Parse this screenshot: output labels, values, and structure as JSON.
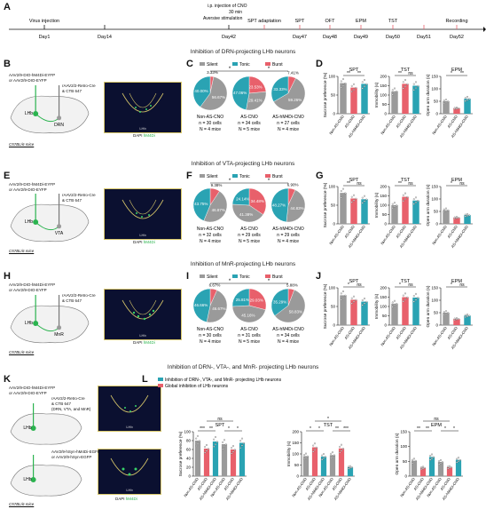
{
  "timeline": {
    "annotation_lines": [
      "i.p. injection of CNO",
      "30 min",
      "Aversive stimulation"
    ],
    "events": [
      {
        "label_top": "Virus injection",
        "day": "Day1"
      },
      {
        "label_top": "",
        "day": "Day14"
      },
      {
        "label_top": "",
        "day": "Day42"
      },
      {
        "label_top": "SPT adaptation",
        "day": ""
      },
      {
        "label_top": "SPT",
        "day": "Day47"
      },
      {
        "label_top": "OFT",
        "day": "Day48"
      },
      {
        "label_top": "EPM",
        "day": "Day49"
      },
      {
        "label_top": "TST",
        "day": "Day50"
      },
      {
        "label_top": "",
        "day": "Day51"
      },
      {
        "label_top": "Recording",
        "day": "Day52"
      }
    ]
  },
  "sections": [
    "Inhibition of DRN-projecting LHb neurons",
    "Inhibition of VTA-projecting LHb neurons",
    "Inhibition of MnR-projecting LHb neurons",
    "Inhibition of DRN-, VTA-, and MnR- projecting LHb neurons"
  ],
  "panel_letters": [
    "A",
    "B",
    "C",
    "D",
    "E",
    "F",
    "G",
    "H",
    "I",
    "J",
    "K",
    "L"
  ],
  "virus": {
    "b": {
      "line1": "AAV2/9-DIO-hM4Di-EYFP",
      "line2": "or AAV2/9-DIO-EYFP",
      "retro1": "rAAV2/2-Retro-Cre",
      "retro2": "& CTB 647",
      "target": "DRN",
      "mice": "C57BL/6 mice"
    },
    "e": {
      "line1": "AAV2/9-DIO-hM4Di-EYFP",
      "line2": "or AAV2/9-DIO-EYFP",
      "retro1": "rAAV2/2-Retro-Cre",
      "retro2": "& CTB 647",
      "target": "VTA",
      "mice": "C57BL/6 mice"
    },
    "h": {
      "line1": "AAV2/9-DIO-hM4Di-EYFP",
      "line2": "or AAV2/9-DIO-EYFP",
      "retro1": "rAAV2/2-Retro-Cre",
      "retro2": "& CTB 647",
      "target": "MnR",
      "mice": "C57BL/6 mice"
    },
    "k": {
      "line1": "AAV2/9-DIO-hM4Di-EYFP",
      "line2": "or AAV2/9-DIO-EYFP",
      "retro1": "rAAV2/2-Retro-Cre",
      "retro2": "& CTB 647",
      "retro3": "(DRN, VTA, and MnR)",
      "line3": "AAV2/9-hSyn-hM4Di-EGFP",
      "line4": "or AAV2/9-hSyn-EGFP",
      "mice": "C57BL/6 mice"
    },
    "lhb": "LHb",
    "dapi": "DAPI",
    "hm4di": "hM4Di"
  },
  "pie_legend": [
    "Silent",
    "Tonic",
    "Burst"
  ],
  "pie_colors": {
    "Silent": "#9a9a9a",
    "Tonic": "#2aa3b3",
    "Burst": "#e8606b"
  },
  "pies": {
    "c": [
      {
        "name": "Non-AS-CNO",
        "silent": 56.67,
        "tonic": 40.0,
        "burst": 3.33,
        "labels": [
          "56.67%",
          "40.00%",
          "3.33%"
        ],
        "n_cells": "n = 30 cells",
        "n_mice": "N = 4 mice"
      },
      {
        "name": "AS-CNO",
        "silent": 29.41,
        "tonic": 47.06,
        "burst": 23.53,
        "labels": [
          "29.41%",
          "47.06%",
          "23.53%"
        ],
        "n_cells": "n = 34 cells",
        "n_mice": "N = 5 mice"
      },
      {
        "name": "AS-hM4Di-CNO",
        "silent": 59.26,
        "tonic": 33.33,
        "burst": 7.41,
        "labels": [
          "59.26%",
          "33.33%",
          "7.41%"
        ],
        "n_cells": "n = 27 cells",
        "n_mice": "N = 4 mice"
      }
    ],
    "f": [
      {
        "name": "Non-AS-CNO",
        "silent": 46.87,
        "tonic": 43.75,
        "burst": 9.38,
        "labels": [
          "46.87%",
          "43.75%",
          "9.38%"
        ],
        "n_cells": "n = 32 cells",
        "n_mice": "N = 4 mice"
      },
      {
        "name": "AS-CNO",
        "silent": 41.38,
        "tonic": 24.14,
        "burst": 34.48,
        "labels": [
          "41.38%",
          "24.14%",
          "34.48%"
        ],
        "n_cells": "n = 29 cells",
        "n_mice": "N = 5 mice"
      },
      {
        "name": "AS-hM4Di-CNO",
        "silent": 44.83,
        "tonic": 48.27,
        "burst": 6.9,
        "labels": [
          "44.83%",
          "48.27%",
          "6.90%"
        ],
        "n_cells": "n = 29 cells",
        "n_mice": "N = 4 mice"
      }
    ],
    "i": [
      {
        "name": "Non-AS-CNO",
        "silent": 46.67,
        "tonic": 46.66,
        "burst": 6.67,
        "labels": [
          "46.67%",
          "46.66%",
          "6.67%"
        ],
        "n_cells": "n = 30 cells",
        "n_mice": "N = 4 mice"
      },
      {
        "name": "AS-CNO",
        "silent": 45.16,
        "tonic": 25.81,
        "burst": 29.03,
        "labels": [
          "45.16%",
          "25.81%",
          "29.03%"
        ],
        "n_cells": "n = 31 cells",
        "n_mice": "N = 5 mice"
      },
      {
        "name": "AS-hM4Di-CNO",
        "silent": 58.83,
        "tonic": 35.29,
        "burst": 5.88,
        "labels": [
          "58.83%",
          "35.29%",
          "5.88%"
        ],
        "n_cells": "n = 34 cells",
        "n_mice": "N = 4 mice"
      }
    ]
  },
  "groups3": [
    "Non-AS-CNO",
    "AS-CNO",
    "AS-hM4Di-CNO"
  ],
  "bar_colors": [
    "#9a9a9a",
    "#e8606b",
    "#2aa3b3"
  ],
  "chart_data": [
    {
      "type": "bar",
      "panel": "D",
      "title": "SPT",
      "ylabel": "Sucrose preference (%)",
      "ylim": [
        0,
        100
      ],
      "yticks": [
        0,
        50,
        100
      ],
      "categories": [
        "Non-AS-CNO",
        "AS-CNO",
        "AS-hM4Di-CNO"
      ],
      "values": [
        82,
        70,
        80
      ],
      "sig": [
        "**",
        "**"
      ]
    },
    {
      "type": "bar",
      "panel": "D",
      "title": "TST",
      "ylabel": "Immobility (s)",
      "ylim": [
        0,
        200
      ],
      "yticks": [
        0,
        50,
        100,
        150,
        200
      ],
      "categories": [
        "Non-AS-CNO",
        "AS-CNO",
        "AS-hM4Di-CNO"
      ],
      "values": [
        120,
        160,
        150
      ],
      "sig": [
        "**",
        "ns"
      ]
    },
    {
      "type": "bar",
      "panel": "D",
      "title": "EPM",
      "ylabel": "Open arm duration (s)",
      "ylim": [
        0,
        150
      ],
      "yticks": [
        0,
        50,
        100,
        150
      ],
      "categories": [
        "Non-AS-CNO",
        "AS-CNO",
        "AS-hM4Di-CNO"
      ],
      "values": [
        50,
        22,
        60
      ],
      "sig": [
        "*",
        "**"
      ]
    },
    {
      "type": "bar",
      "panel": "G",
      "title": "SPT",
      "ylabel": "Sucrose preference (%)",
      "ylim": [
        0,
        100
      ],
      "yticks": [
        0,
        50,
        100
      ],
      "categories": [
        "Non-AS-CNO",
        "AS-CNO",
        "AS-hM4Di-CNO"
      ],
      "values": [
        83,
        68,
        66
      ],
      "sig": [
        "**",
        "ns"
      ]
    },
    {
      "type": "bar",
      "panel": "G",
      "title": "TST",
      "ylabel": "Immobility (s)",
      "ylim": [
        0,
        200
      ],
      "yticks": [
        0,
        50,
        100,
        150,
        200
      ],
      "categories": [
        "Non-AS-CNO",
        "AS-CNO",
        "AS-hM4Di-CNO"
      ],
      "values": [
        100,
        145,
        125
      ],
      "sig": [
        "**",
        "ns"
      ]
    },
    {
      "type": "bar",
      "panel": "G",
      "title": "EPM",
      "ylabel": "Open arm duration (s)",
      "ylim": [
        0,
        150
      ],
      "yticks": [
        0,
        50,
        100,
        150
      ],
      "categories": [
        "Non-AS-CNO",
        "AS-CNO",
        "AS-hM4Di-CNO"
      ],
      "values": [
        55,
        25,
        35
      ],
      "sig": [
        "*",
        "ns"
      ]
    },
    {
      "type": "bar",
      "panel": "J",
      "title": "SPT",
      "ylabel": "Sucrose preference (%)",
      "ylim": [
        0,
        100
      ],
      "yticks": [
        0,
        50,
        100
      ],
      "categories": [
        "Non-AS-CNO",
        "AS-CNO",
        "AS-hM4Di-CNO"
      ],
      "values": [
        80,
        68,
        63
      ],
      "sig": [
        "*",
        "ns"
      ]
    },
    {
      "type": "bar",
      "panel": "J",
      "title": "TST",
      "ylabel": "Immobility (s)",
      "ylim": [
        0,
        200
      ],
      "yticks": [
        0,
        50,
        100,
        150,
        200
      ],
      "categories": [
        "Non-AS-CNO",
        "AS-CNO",
        "AS-hM4Di-CNO"
      ],
      "values": [
        115,
        150,
        148
      ],
      "sig": [
        "*",
        "ns"
      ]
    },
    {
      "type": "bar",
      "panel": "J",
      "title": "EPM",
      "ylabel": "Open arm duration (s)",
      "ylim": [
        0,
        150
      ],
      "yticks": [
        0,
        50,
        100,
        150
      ],
      "categories": [
        "Non-AS-CNO",
        "AS-CNO",
        "AS-hM4Di-CNO"
      ],
      "values": [
        50,
        25,
        38
      ],
      "sig": [
        "*",
        "ns"
      ]
    },
    {
      "type": "bar",
      "panel": "L",
      "title": "SPT",
      "ylabel": "Sucrose preference (%)",
      "ylim": [
        0,
        100
      ],
      "yticks": [
        0,
        20,
        40,
        60,
        80,
        100
      ],
      "categories": [
        "Non-AS-CNO",
        "AS-CNO",
        "AS-hM4Di-CNO",
        "Non-AS-CNO",
        "AS-CNO",
        "AS-hM4Di-CNO"
      ],
      "values": [
        80,
        62,
        78,
        72,
        60,
        75
      ],
      "legend": [
        "Inhibition of DRN-, VTA-, and MnR- projecting LHb neurons",
        "Global inhibition of LHb neurons"
      ],
      "sig": [
        "***",
        "**",
        "*",
        "*"
      ],
      "top": "ns"
    },
    {
      "type": "bar",
      "panel": "L",
      "title": "TST",
      "ylabel": "Immobility (s)",
      "ylim": [
        0,
        200
      ],
      "yticks": [
        0,
        50,
        100,
        150,
        200
      ],
      "categories": [
        "Non-AS-CNO",
        "AS-CNO",
        "AS-hM4Di-CNO",
        "Non-AS-CNO",
        "AS-CNO",
        "AS-hM4Di-CNO"
      ],
      "values": [
        90,
        130,
        88,
        95,
        125,
        40
      ],
      "sig": [
        "*",
        "*",
        "**",
        "***"
      ],
      "top": "*"
    },
    {
      "type": "bar",
      "panel": "L",
      "title": "EPM",
      "ylabel": "Open arm duration (s)",
      "ylim": [
        0,
        150
      ],
      "yticks": [
        0,
        50,
        100,
        150
      ],
      "categories": [
        "Non-AS-CNO",
        "AS-CNO",
        "AS-hM4Di-CNO",
        "Non-AS-CNO",
        "AS-CNO",
        "AS-hM4Di-CNO"
      ],
      "values": [
        52,
        28,
        65,
        48,
        30,
        55
      ],
      "sig": [
        "**",
        "**",
        "*",
        "*"
      ],
      "top": "ns"
    }
  ]
}
